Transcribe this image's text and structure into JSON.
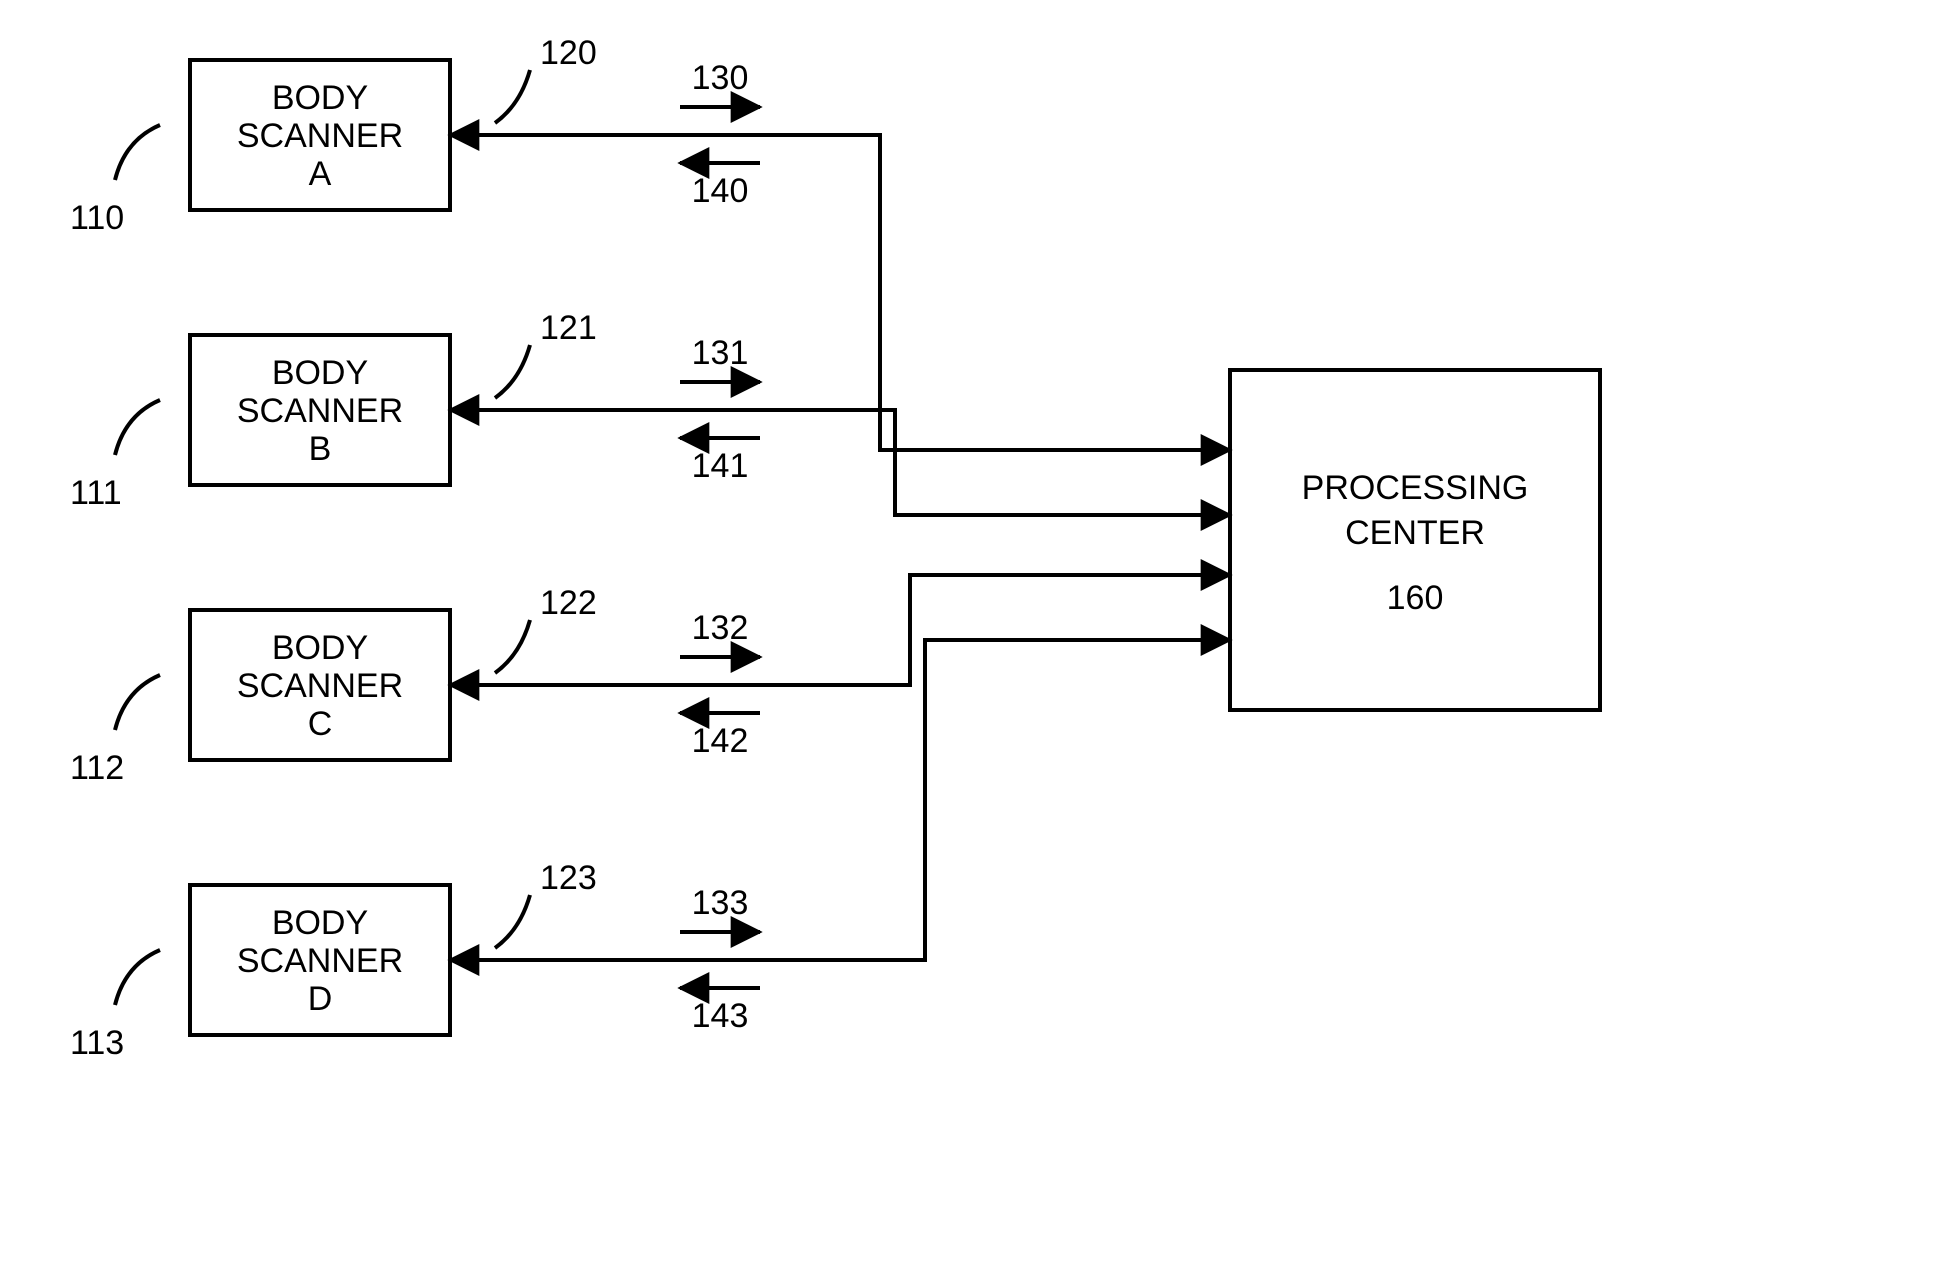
{
  "diagram": {
    "type": "block-diagram",
    "background_color": "#ffffff",
    "stroke_color": "#000000",
    "stroke_width": 4,
    "font_family": "Arial",
    "box_font_size": 34,
    "num_font_size": 34,
    "scanners": [
      {
        "lines": [
          "BODY",
          "SCANNER",
          "A"
        ],
        "ref_left": "110",
        "ref_link": "120",
        "ref_out": "130",
        "ref_in": "140"
      },
      {
        "lines": [
          "BODY",
          "SCANNER",
          "B"
        ],
        "ref_left": "111",
        "ref_link": "121",
        "ref_out": "131",
        "ref_in": "141"
      },
      {
        "lines": [
          "BODY",
          "SCANNER",
          "C"
        ],
        "ref_left": "112",
        "ref_link": "122",
        "ref_out": "132",
        "ref_in": "142"
      },
      {
        "lines": [
          "BODY",
          "SCANNER",
          "D"
        ],
        "ref_left": "113",
        "ref_link": "123",
        "ref_out": "133",
        "ref_in": "143"
      }
    ],
    "center": {
      "lines": [
        "PROCESSING",
        "CENTER",
        "160"
      ]
    }
  }
}
